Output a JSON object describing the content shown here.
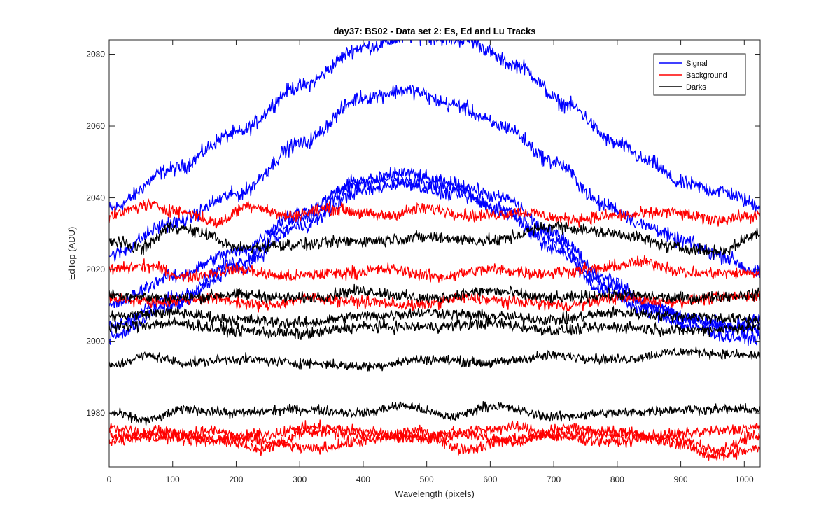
{
  "chart_data": {
    "type": "line",
    "title": "day37: BS02 - Data set 2: Es, Ed and Lu Tracks",
    "xlabel": "Wavelength (pixels)",
    "ylabel": "EdTop (ADU)",
    "xlim": [
      0,
      1025
    ],
    "ylim": [
      1965,
      2084
    ],
    "xticks": [
      0,
      100,
      200,
      300,
      400,
      500,
      600,
      700,
      800,
      900,
      1000
    ],
    "yticks": [
      1980,
      2000,
      2020,
      2040,
      2060,
      2080
    ],
    "grid": false,
    "legend_position": "top-right",
    "legend": [
      {
        "name": "Signal",
        "color": "#0000ff"
      },
      {
        "name": "Background",
        "color": "#ff0000"
      },
      {
        "name": "Darks",
        "color": "#000000"
      }
    ],
    "series": [
      {
        "group": "Signal",
        "color": "#0000ff",
        "noise": 1.8,
        "x": [
          0,
          100,
          200,
          300,
          400,
          480,
          560,
          640,
          720,
          800,
          850,
          900,
          960,
          1025
        ],
        "y": [
          2037,
          2048,
          2058,
          2071,
          2082,
          2085,
          2084,
          2077,
          2066,
          2055,
          2050,
          2044,
          2042,
          2038
        ]
      },
      {
        "group": "Signal",
        "color": "#0000ff",
        "noise": 1.8,
        "x": [
          0,
          100,
          200,
          300,
          400,
          470,
          540,
          620,
          700,
          780,
          850,
          900,
          960,
          1025
        ],
        "y": [
          2024,
          2033,
          2041,
          2055,
          2068,
          2070,
          2066,
          2060,
          2050,
          2038,
          2032,
          2028,
          2024,
          2019
        ]
      },
      {
        "group": "Signal",
        "color": "#0000ff",
        "noise": 1.6,
        "x": [
          0,
          100,
          200,
          300,
          400,
          460,
          540,
          620,
          700,
          780,
          850,
          920,
          980,
          1025
        ],
        "y": [
          2004,
          2012,
          2022,
          2034,
          2044,
          2047,
          2044,
          2040,
          2030,
          2018,
          2010,
          2006,
          2004,
          2004
        ]
      },
      {
        "group": "Signal",
        "color": "#0000ff",
        "noise": 1.6,
        "x": [
          0,
          100,
          200,
          300,
          400,
          460,
          540,
          620,
          700,
          780,
          850,
          920,
          980,
          1025
        ],
        "y": [
          2010,
          2018,
          2025,
          2036,
          2045,
          2045,
          2043,
          2036,
          2026,
          2014,
          2008,
          2004,
          2001,
          2001
        ]
      },
      {
        "group": "Signal",
        "color": "#0000ff",
        "noise": 1.6,
        "x": [
          0,
          100,
          200,
          300,
          400,
          460,
          540,
          620,
          700,
          780,
          850,
          920,
          980,
          1025
        ],
        "y": [
          2001,
          2010,
          2020,
          2032,
          2042,
          2044,
          2041,
          2037,
          2028,
          2016,
          2010,
          2006,
          2004,
          2007
        ]
      },
      {
        "group": "Background",
        "color": "#ff0000",
        "noise": 1.5,
        "x": [
          0,
          60,
          120,
          170,
          220,
          280,
          350,
          430,
          500,
          580,
          650,
          720,
          800,
          880,
          950,
          1025
        ],
        "y": [
          2035,
          2038,
          2036,
          2033,
          2038,
          2035,
          2037,
          2035,
          2037,
          2035,
          2036,
          2034,
          2035,
          2036,
          2034,
          2035
        ]
      },
      {
        "group": "Background",
        "color": "#ff0000",
        "noise": 1.5,
        "x": [
          0,
          60,
          120,
          200,
          280,
          360,
          440,
          520,
          600,
          680,
          760,
          840,
          920,
          1025
        ],
        "y": [
          2020,
          2021,
          2018,
          2020,
          2018,
          2019,
          2020,
          2018,
          2020,
          2019,
          2020,
          2022,
          2019,
          2019
        ]
      },
      {
        "group": "Background",
        "color": "#ff0000",
        "noise": 1.4,
        "x": [
          0,
          80,
          160,
          240,
          320,
          400,
          480,
          560,
          640,
          720,
          800,
          880,
          960,
          1025
        ],
        "y": [
          2012,
          2011,
          2012,
          2010,
          2012,
          2011,
          2010,
          2012,
          2011,
          2010,
          2012,
          2011,
          2012,
          2013
        ]
      },
      {
        "group": "Background",
        "color": "#ff0000",
        "noise": 1.4,
        "x": [
          0,
          80,
          160,
          240,
          320,
          400,
          480,
          560,
          640,
          720,
          800,
          880,
          960,
          1025
        ],
        "y": [
          1972,
          1975,
          1973,
          1970,
          1975,
          1974,
          1973,
          1974,
          1972,
          1976,
          1974,
          1973,
          1970,
          1974
        ]
      },
      {
        "group": "Background",
        "color": "#ff0000",
        "noise": 1.4,
        "x": [
          0,
          80,
          160,
          240,
          320,
          400,
          480,
          560,
          640,
          720,
          800,
          880,
          960,
          1025
        ],
        "y": [
          1974,
          1973,
          1975,
          1972,
          1970,
          1972,
          1975,
          1970,
          1973,
          1974,
          1975,
          1972,
          1968,
          1970
        ]
      },
      {
        "group": "Background",
        "color": "#ff0000",
        "noise": 1.4,
        "x": [
          0,
          80,
          160,
          240,
          320,
          400,
          480,
          560,
          640,
          720,
          800,
          880,
          960,
          1025
        ],
        "y": [
          1976,
          1974,
          1972,
          1974,
          1976,
          1975,
          1973,
          1975,
          1976,
          1973,
          1972,
          1974,
          1975,
          1976
        ]
      },
      {
        "group": "Darks",
        "color": "#000000",
        "noise": 1.5,
        "x": [
          0,
          50,
          100,
          150,
          200,
          300,
          400,
          500,
          600,
          700,
          800,
          900,
          960,
          1025
        ],
        "y": [
          2028,
          2026,
          2032,
          2030,
          2026,
          2027,
          2028,
          2029,
          2028,
          2032,
          2030,
          2026,
          2025,
          2030
        ]
      },
      {
        "group": "Darks",
        "color": "#000000",
        "noise": 1.4,
        "x": [
          0,
          100,
          200,
          300,
          400,
          500,
          600,
          700,
          800,
          900,
          1025
        ],
        "y": [
          2013,
          2012,
          2013,
          2012,
          2014,
          2012,
          2014,
          2012,
          2013,
          2012,
          2013
        ]
      },
      {
        "group": "Darks",
        "color": "#000000",
        "noise": 1.4,
        "x": [
          0,
          100,
          200,
          300,
          400,
          500,
          600,
          700,
          800,
          900,
          1025
        ],
        "y": [
          2007,
          2008,
          2006,
          2005,
          2007,
          2008,
          2007,
          2006,
          2008,
          2007,
          2006
        ]
      },
      {
        "group": "Darks",
        "color": "#000000",
        "noise": 1.4,
        "x": [
          0,
          100,
          200,
          300,
          400,
          500,
          600,
          700,
          800,
          900,
          1025
        ],
        "y": [
          2004,
          2005,
          2003,
          2002,
          2004,
          2004,
          2005,
          2003,
          2004,
          2003,
          2004
        ]
      },
      {
        "group": "Darks",
        "color": "#000000",
        "noise": 1.2,
        "x": [
          0,
          60,
          120,
          200,
          300,
          400,
          500,
          600,
          700,
          800,
          900,
          1025
        ],
        "y": [
          1993,
          1996,
          1994,
          1995,
          1994,
          1993,
          1995,
          1994,
          1996,
          1995,
          1997,
          1996
        ]
      },
      {
        "group": "Darks",
        "color": "#000000",
        "noise": 1.2,
        "x": [
          0,
          60,
          120,
          200,
          300,
          400,
          460,
          540,
          600,
          700,
          800,
          900,
          1025
        ],
        "y": [
          1980,
          1978,
          1981,
          1980,
          1981,
          1980,
          1982,
          1979,
          1982,
          1979,
          1980,
          1981,
          1981
        ]
      }
    ]
  }
}
